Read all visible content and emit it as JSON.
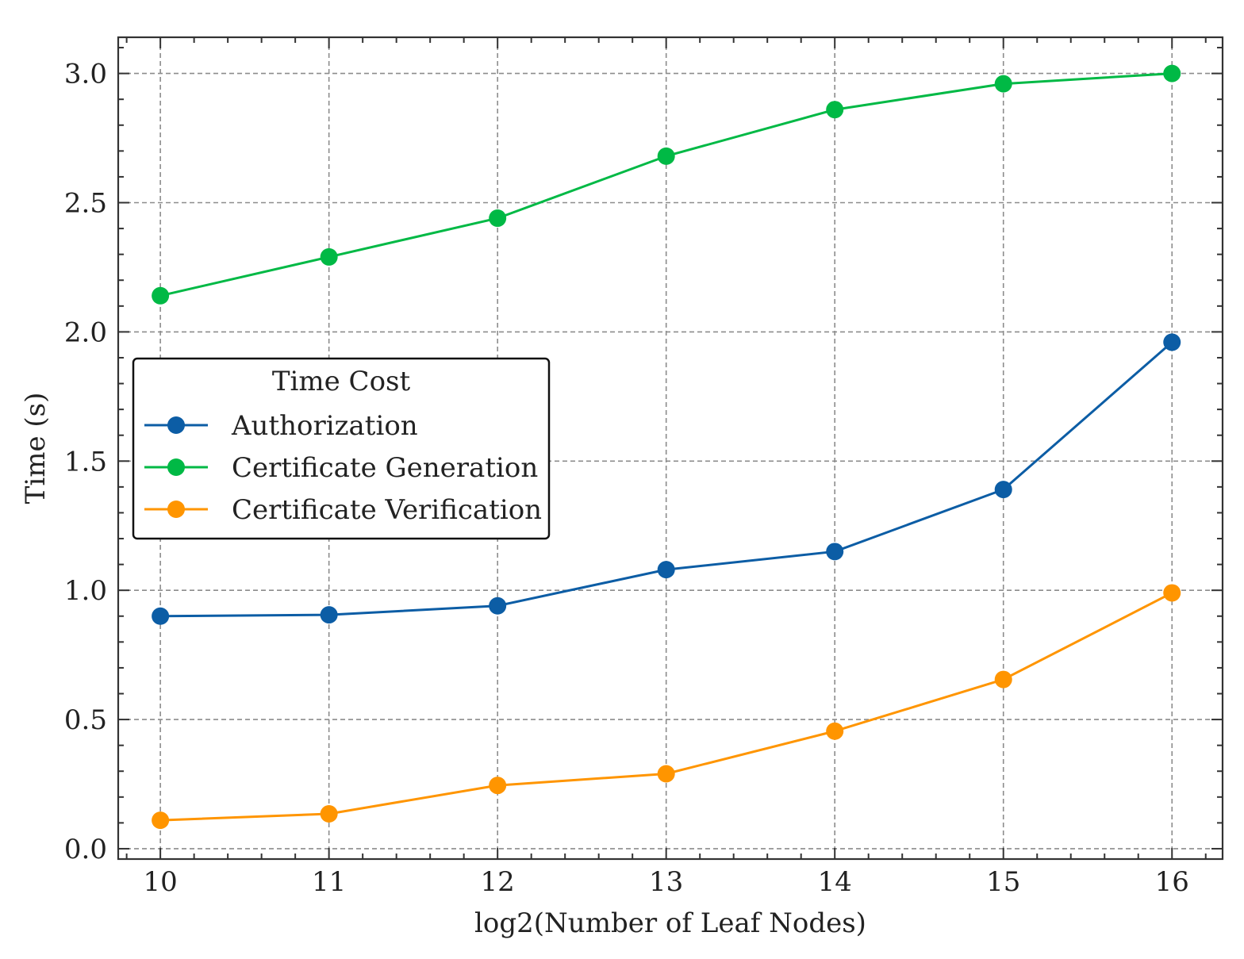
{
  "chart_data": {
    "type": "line",
    "title": "",
    "xlabel": "log2(Number of Leaf Nodes)",
    "ylabel": "Time (s)",
    "x": [
      10,
      11,
      12,
      13,
      14,
      15,
      16
    ],
    "xlim": [
      9.75,
      16.3
    ],
    "ylim": [
      -0.04,
      3.14
    ],
    "xticks": [
      10,
      11,
      12,
      13,
      14,
      15,
      16
    ],
    "yticks": [
      0.0,
      0.5,
      1.0,
      1.5,
      2.0,
      2.5,
      3.0
    ],
    "ytick_labels": [
      "0.0",
      "0.5",
      "1.0",
      "1.5",
      "2.0",
      "2.5",
      "3.0"
    ],
    "grid": true,
    "series": [
      {
        "name": "Authorization",
        "color": "#0C5DA5",
        "values": [
          0.9,
          0.905,
          0.94,
          1.08,
          1.15,
          1.39,
          1.96
        ]
      },
      {
        "name": "Certificate Generation",
        "color": "#00B945",
        "values": [
          2.14,
          2.29,
          2.44,
          2.68,
          2.86,
          2.96,
          3.0
        ]
      },
      {
        "name": "Certificate Verification",
        "color": "#FF9500",
        "values": [
          0.11,
          0.135,
          0.245,
          0.29,
          0.455,
          0.655,
          0.99
        ]
      }
    ],
    "legend": {
      "title": "Time Cost",
      "position": "center-left"
    }
  }
}
